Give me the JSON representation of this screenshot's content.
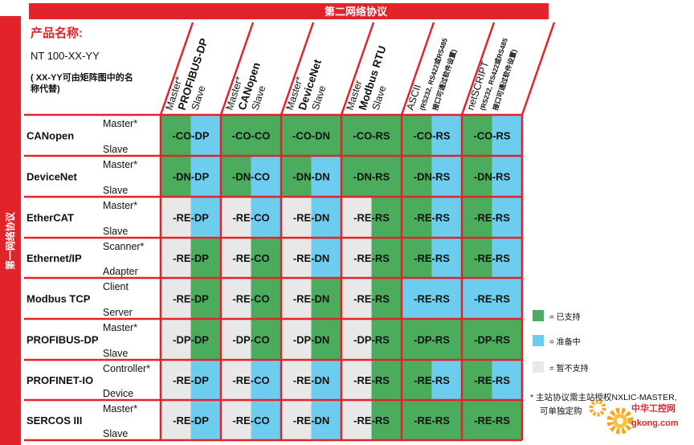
{
  "header": {
    "top_title": "第二网络协议",
    "left_title": "第一网络协议"
  },
  "product": {
    "title": "产品名称:",
    "model": "NT 100-XX-YY",
    "note_line1": "( XX-YY可由矩阵图中的名",
    "note_line2": "称代替)"
  },
  "columns": [
    {
      "lines": [
        "Master*",
        "PROFIBUS-DP",
        "Slave"
      ],
      "bold": [
        false,
        true,
        false
      ]
    },
    {
      "lines": [
        "Master*",
        "CANopen",
        "Slave"
      ],
      "bold": [
        false,
        true,
        false
      ]
    },
    {
      "lines": [
        "Master*",
        "DeviceNet",
        "Slave"
      ],
      "bold": [
        false,
        true,
        false
      ]
    },
    {
      "lines": [
        "Master",
        "Modbus RTU",
        "Slave"
      ],
      "bold": [
        false,
        true,
        false
      ]
    },
    {
      "lines": [
        "ASCII",
        "(RS232, RS422或RS485",
        "接口可通过软件设置)"
      ],
      "bold": [
        false,
        false,
        false
      ]
    },
    {
      "lines": [
        "netSCRIPT",
        "(RS232, RS422或RS485",
        "接口可通过软件设置)"
      ],
      "bold": [
        false,
        false,
        false
      ]
    }
  ],
  "rows": [
    {
      "name": "CANopen",
      "top": "Master*",
      "bottom": "Slave",
      "codes": [
        "-CO-DP",
        "-CO-CO",
        "-CO-DN",
        "-CO-RS",
        "-CO-RS",
        "-CO-RS"
      ]
    },
    {
      "name": "DeviceNet",
      "top": "Master*",
      "bottom": "Slave",
      "codes": [
        "-DN-DP",
        "-DN-CO",
        "-DN-DN",
        "-DN-RS",
        "-DN-RS",
        "-DN-RS"
      ]
    },
    {
      "name": "EtherCAT",
      "top": "Master*",
      "bottom": "Slave",
      "codes": [
        "-RE-DP",
        "-RE-CO",
        "-RE-DN",
        "-RE-RS",
        "-RE-RS",
        "-RE-RS"
      ]
    },
    {
      "name": "Ethernet/IP",
      "top": "Scanner*",
      "bottom": "Adapter",
      "codes": [
        "-RE-DP",
        "-RE-CO",
        "-RE-DN",
        "-RE-RS",
        "-RE-RS",
        "-RE-RS"
      ]
    },
    {
      "name": "Modbus TCP",
      "top": "Client",
      "bottom": "Server",
      "codes": [
        "-RE-DP",
        "-RE-CO",
        "-RE-DN",
        "-RE-RS",
        "-RE-RS",
        "-RE-RS"
      ]
    },
    {
      "name": "PROFIBUS-DP",
      "top": "Master*",
      "bottom": "Slave",
      "codes": [
        "-DP-DP",
        "-DP-CO",
        "-DP-DN",
        "-DP-RS",
        "-DP-RS",
        "-DP-RS"
      ]
    },
    {
      "name": "PROFINET-IO",
      "top": "Controller*",
      "bottom": "Device",
      "codes": [
        "-RE-DP",
        "-RE-CO",
        "-RE-DN",
        "-RE-RS",
        "-RE-RS",
        "-RE-RS"
      ]
    },
    {
      "name": "SERCOS III",
      "top": "Master*",
      "bottom": "Slave",
      "codes": [
        "-RE-DP",
        "-RE-CO",
        "-RE-DN",
        "-RE-RS",
        "-RE-RS",
        "-RE-RS"
      ]
    }
  ],
  "cell_colors": [
    [
      [
        "green",
        "blue"
      ],
      [
        "green",
        "green"
      ],
      [
        "green",
        "green"
      ],
      [
        "green",
        "green"
      ],
      [
        "green",
        "blue"
      ],
      [
        "green",
        "blue"
      ]
    ],
    [
      [
        "green",
        "blue"
      ],
      [
        "green",
        "blue"
      ],
      [
        "green",
        "blue"
      ],
      [
        "green",
        "green"
      ],
      [
        "green",
        "blue"
      ],
      [
        "green",
        "blue"
      ]
    ],
    [
      [
        "grey",
        "blue"
      ],
      [
        "grey",
        "blue"
      ],
      [
        "grey",
        "blue"
      ],
      [
        "grey",
        "green"
      ],
      [
        "green",
        "blue"
      ],
      [
        "green",
        "blue"
      ]
    ],
    [
      [
        "grey",
        "green"
      ],
      [
        "grey",
        "green"
      ],
      [
        "grey",
        "blue"
      ],
      [
        "grey",
        "green"
      ],
      [
        "green",
        "blue"
      ],
      [
        "green",
        "blue"
      ]
    ],
    [
      [
        "grey",
        "green"
      ],
      [
        "grey",
        "green"
      ],
      [
        "grey",
        "green"
      ],
      [
        "grey",
        "green"
      ],
      [
        "blue",
        "blue"
      ],
      [
        "blue",
        "blue"
      ]
    ],
    [
      [
        "grey",
        "green"
      ],
      [
        "grey",
        "green"
      ],
      [
        "grey",
        "green"
      ],
      [
        "grey",
        "green"
      ],
      [
        "green",
        "green"
      ],
      [
        "green",
        "green"
      ]
    ],
    [
      [
        "grey",
        "blue"
      ],
      [
        "grey",
        "blue"
      ],
      [
        "grey",
        "blue"
      ],
      [
        "grey",
        "green"
      ],
      [
        "green",
        "blue"
      ],
      [
        "green",
        "blue"
      ]
    ],
    [
      [
        "grey",
        "blue"
      ],
      [
        "grey",
        "blue"
      ],
      [
        "grey",
        "blue"
      ],
      [
        "grey",
        "green"
      ],
      [
        "green",
        "green"
      ],
      [
        "green",
        "green"
      ]
    ]
  ],
  "legend": [
    {
      "color": "green",
      "label": "= 已支持"
    },
    {
      "color": "blue",
      "label": "= 准备中"
    },
    {
      "color": "grey",
      "label": "= 暂不支持"
    }
  ],
  "footnote": {
    "line1": "* 主站协议需主站授权NXLIC-MASTER,",
    "line2": "可单独定购"
  },
  "watermark": {
    "brand": "中华工控网",
    "url": "gkong.com"
  },
  "colors": {
    "red": "#e2232a",
    "green": "#4aac5c",
    "blue": "#6dcdee",
    "grey": "#e8e8e8",
    "text": "#111111",
    "white": "#ffffff"
  }
}
